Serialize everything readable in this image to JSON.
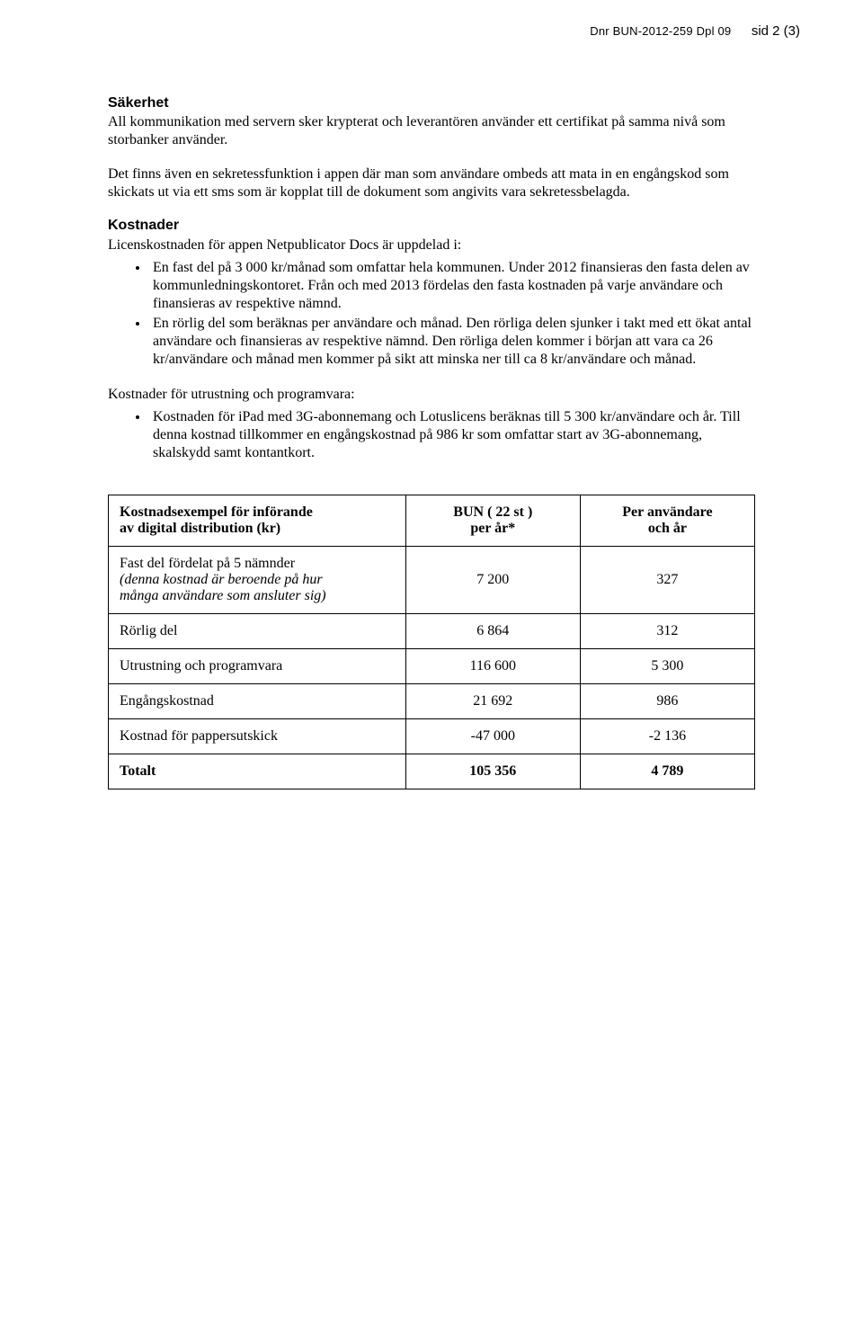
{
  "header": {
    "dnr": "Dnr BUN-2012-259   Dpl 09",
    "sid": "sid 2 (3)"
  },
  "sections": {
    "sakerhet": {
      "heading": "Säkerhet",
      "p1": "All kommunikation med servern sker krypterat och leverantören använder ett certifikat på samma nivå som storbanker använder.",
      "p2": "Det finns även en sekretessfunktion i appen där man som användare ombeds att mata in en engångskod som skickats ut via ett sms som är kopplat till de dokument som angivits vara sekretessbelagda."
    },
    "kostnader": {
      "heading": "Kostnader",
      "lead": "Licenskostnaden för appen Netpublicator Docs är uppdelad i:",
      "bullets": [
        "En fast del på 3 000 kr/månad som omfattar hela kommunen. Under 2012 finansieras den fasta delen av kommunledningskontoret. Från och med 2013 fördelas den fasta kostnaden på varje användare och finansieras av respektive nämnd.",
        "En rörlig del som beräknas per användare och månad. Den rörliga delen sjunker i takt med ett ökat antal användare och finansieras av respektive nämnd. Den rörliga delen kommer i början att vara ca 26 kr/användare och månad men kommer på sikt att minska ner till ca 8 kr/användare och månad."
      ],
      "lead2": "Kostnader för utrustning och programvara:",
      "bullets2": [
        "Kostnaden för iPad med 3G-abonnemang och Lotuslicens beräknas till 5 300 kr/användare och år. Till denna kostnad tillkommer en engångskostnad på 986 kr som omfattar start av 3G-abonnemang, skalskydd samt kontantkort."
      ]
    }
  },
  "table": {
    "headers": {
      "c1a": "Kostnadsexempel för införande",
      "c1b": "av digital distribution (kr)",
      "c2a": "BUN ( 22 st )",
      "c2b": "per år*",
      "c3a": "Per användare",
      "c3b": "och år"
    },
    "rows": [
      {
        "label_main": "Fast del fördelat på 5 nämnder",
        "label_italic1": "(denna kostnad är beroende på hur",
        "label_italic2": "många användare som ansluter sig)",
        "v1": "7 200",
        "v2": "327"
      },
      {
        "label_main": "Rörlig del",
        "v1": "6 864",
        "v2": "312"
      },
      {
        "label_main": "Utrustning och programvara",
        "v1": "116 600",
        "v2": "5 300"
      },
      {
        "label_main": "Engångskostnad",
        "v1": "21 692",
        "v2": "986"
      },
      {
        "label_main": "Kostnad för pappersutskick",
        "v1": "-47 000",
        "v2": "-2 136"
      },
      {
        "label_main": "Totalt",
        "bold": true,
        "v1": "105 356",
        "v2": "4 789"
      }
    ]
  }
}
